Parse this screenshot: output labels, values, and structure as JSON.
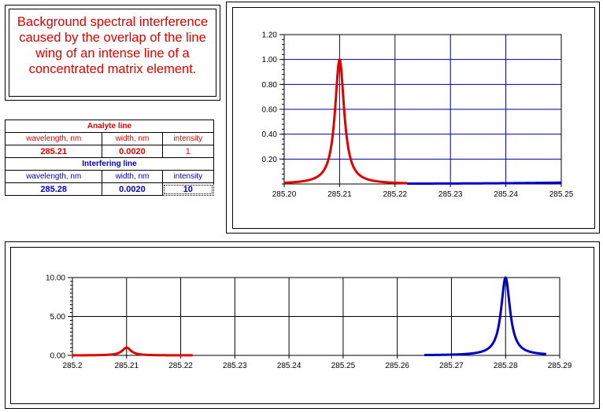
{
  "description": "Background spectral interference caused by the overlap of the line wing of an intense line of a concentrated matrix element.",
  "params": {
    "analyte_title": "Analyte line",
    "interfering_title": "Interfering line",
    "col_wavelength": "wavelength, nm",
    "col_width": "width, nm",
    "col_intensity": "intensity",
    "analyte": {
      "wavelength": "285.21",
      "width": "0.0020",
      "intensity": "1"
    },
    "interfering": {
      "wavelength": "285.28",
      "width": "0.0020",
      "intensity": "10"
    }
  },
  "colors": {
    "analyte": "#e00000",
    "interfering": "#0000c8",
    "grid": "#0000a0"
  },
  "chart_data": [
    {
      "type": "line",
      "xlim": [
        285.2,
        285.25
      ],
      "ylim": [
        0,
        1.2
      ],
      "x_ticks": [
        "285.20",
        "285.21",
        "285.22",
        "285.23",
        "285.24",
        "285.25"
      ],
      "y_ticks": [
        "0.20",
        "0.40",
        "0.60",
        "0.80",
        "1.00",
        "1.20"
      ],
      "grid": true,
      "grid_color": "#0000a0",
      "series": [
        {
          "color": "#e00000",
          "center": 285.21,
          "width": 0.002,
          "peak": 1.0,
          "x_range": [
            285.2,
            285.2222
          ]
        },
        {
          "color": "#0000c8",
          "center": 285.28,
          "width": 0.002,
          "peak": 10.0,
          "x_range": [
            285.2222,
            285.25
          ]
        }
      ]
    },
    {
      "type": "line",
      "xlim": [
        285.2,
        285.29
      ],
      "ylim": [
        0,
        10
      ],
      "x_ticks": [
        "285.2",
        "285.21",
        "285.22",
        "285.23",
        "285.24",
        "285.25",
        "285.26",
        "285.27",
        "285.28",
        "285.29"
      ],
      "y_ticks": [
        "0.00",
        "5.00",
        "10.00"
      ],
      "grid": true,
      "grid_color": "#000000",
      "series": [
        {
          "color": "#e00000",
          "center": 285.21,
          "width": 0.002,
          "peak": 1.0,
          "x_range": [
            285.2,
            285.2222
          ]
        },
        {
          "color": "#0000c8",
          "center": 285.28,
          "width": 0.002,
          "peak": 10.0,
          "x_range": [
            285.265,
            285.2875
          ]
        }
      ]
    }
  ]
}
